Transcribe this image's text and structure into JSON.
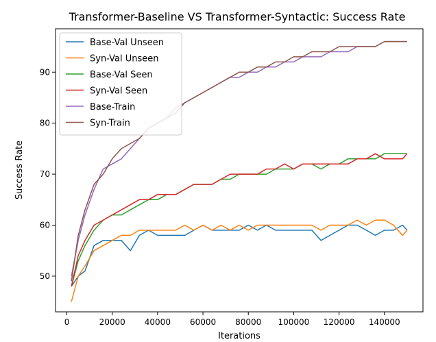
{
  "chart_data": {
    "type": "line",
    "title": "Transformer-Baseline VS Transformer-Syntactic: Success Rate",
    "xlabel": "Iterations",
    "ylabel": "Success Rate",
    "xlim": [
      -5000,
      157000
    ],
    "ylim": [
      43,
      98.5
    ],
    "xticks": [
      0,
      20000,
      40000,
      60000,
      80000,
      100000,
      120000,
      140000
    ],
    "yticks": [
      50,
      60,
      70,
      80,
      90
    ],
    "legend_position": "top-left",
    "grid": false,
    "series": [
      {
        "name": "Base-Val Unseen",
        "color": "#1f77b4",
        "x": [
          2000,
          5000,
          8000,
          12000,
          16000,
          20000,
          24000,
          28000,
          32000,
          36000,
          40000,
          44000,
          48000,
          52000,
          56000,
          60000,
          64000,
          68000,
          72000,
          76000,
          80000,
          84000,
          88000,
          92000,
          96000,
          100000,
          104000,
          108000,
          112000,
          116000,
          120000,
          124000,
          128000,
          132000,
          136000,
          140000,
          144000,
          148000,
          150000
        ],
        "values": [
          48,
          50,
          51,
          56,
          57,
          57,
          57,
          55,
          58,
          59,
          58,
          58,
          58,
          58,
          59,
          60,
          59,
          59,
          59,
          59,
          60,
          59,
          60,
          59,
          59,
          59,
          59,
          59,
          57,
          58,
          59,
          60,
          60,
          59,
          58,
          59,
          59,
          60,
          59
        ]
      },
      {
        "name": "Syn-Val Unseen",
        "color": "#ff7f0e",
        "x": [
          2000,
          5000,
          8000,
          12000,
          16000,
          20000,
          24000,
          28000,
          32000,
          36000,
          40000,
          44000,
          48000,
          52000,
          56000,
          60000,
          64000,
          68000,
          72000,
          76000,
          80000,
          84000,
          88000,
          92000,
          96000,
          100000,
          104000,
          108000,
          112000,
          116000,
          120000,
          124000,
          128000,
          132000,
          136000,
          140000,
          144000,
          148000,
          150000
        ],
        "values": [
          45,
          50,
          52,
          55,
          56,
          57,
          58,
          58,
          59,
          59,
          59,
          59,
          59,
          60,
          59,
          60,
          59,
          60,
          59,
          60,
          59,
          60,
          60,
          60,
          60,
          60,
          60,
          60,
          59,
          60,
          60,
          60,
          61,
          60,
          61,
          61,
          60,
          58,
          59
        ]
      },
      {
        "name": "Base-Val Seen",
        "color": "#2ca02c",
        "x": [
          2000,
          5000,
          8000,
          12000,
          16000,
          20000,
          24000,
          28000,
          32000,
          36000,
          40000,
          44000,
          48000,
          52000,
          56000,
          60000,
          64000,
          68000,
          72000,
          76000,
          80000,
          84000,
          88000,
          92000,
          96000,
          100000,
          104000,
          108000,
          112000,
          116000,
          120000,
          124000,
          128000,
          132000,
          136000,
          140000,
          144000,
          148000,
          150000
        ],
        "values": [
          48,
          53,
          56,
          59,
          61,
          62,
          62,
          63,
          64,
          65,
          65,
          66,
          66,
          67,
          68,
          68,
          68,
          69,
          69,
          70,
          70,
          70,
          70,
          71,
          71,
          71,
          72,
          72,
          71,
          72,
          72,
          73,
          73,
          73,
          73,
          74,
          74,
          74,
          74
        ]
      },
      {
        "name": "Syn-Val Seen",
        "color": "#d62728",
        "x": [
          2000,
          5000,
          8000,
          12000,
          16000,
          20000,
          24000,
          28000,
          32000,
          36000,
          40000,
          44000,
          48000,
          52000,
          56000,
          60000,
          64000,
          68000,
          72000,
          76000,
          80000,
          84000,
          88000,
          92000,
          96000,
          100000,
          104000,
          108000,
          112000,
          116000,
          120000,
          124000,
          128000,
          132000,
          136000,
          140000,
          144000,
          148000,
          150000
        ],
        "values": [
          48,
          54,
          57,
          60,
          61,
          62,
          63,
          64,
          65,
          65,
          66,
          66,
          66,
          67,
          68,
          68,
          68,
          69,
          70,
          70,
          70,
          70,
          71,
          71,
          72,
          71,
          72,
          72,
          72,
          72,
          72,
          72,
          73,
          73,
          74,
          73,
          73,
          73,
          74
        ]
      },
      {
        "name": "Base-Train",
        "color": "#9467bd",
        "x": [
          2000,
          5000,
          8000,
          12000,
          16000,
          20000,
          24000,
          28000,
          32000,
          36000,
          40000,
          44000,
          48000,
          52000,
          56000,
          60000,
          64000,
          68000,
          72000,
          76000,
          80000,
          84000,
          88000,
          92000,
          96000,
          100000,
          104000,
          108000,
          112000,
          116000,
          120000,
          124000,
          128000,
          132000,
          136000,
          140000,
          144000,
          148000,
          150000
        ],
        "values": [
          50,
          57,
          62,
          67,
          71,
          72,
          73,
          75,
          77,
          79,
          80,
          81,
          83,
          84,
          85,
          86,
          87,
          88,
          89,
          89,
          90,
          90,
          91,
          91,
          92,
          92,
          93,
          93,
          93,
          94,
          94,
          94,
          95,
          95,
          95,
          96,
          96,
          96,
          96
        ]
      },
      {
        "name": "Syn-Train",
        "color": "#8c564b",
        "x": [
          2000,
          5000,
          8000,
          12000,
          16000,
          20000,
          24000,
          28000,
          32000,
          36000,
          40000,
          44000,
          48000,
          52000,
          56000,
          60000,
          64000,
          68000,
          72000,
          76000,
          80000,
          84000,
          88000,
          92000,
          96000,
          100000,
          104000,
          108000,
          112000,
          116000,
          120000,
          124000,
          128000,
          132000,
          136000,
          140000,
          144000,
          148000,
          150000
        ],
        "values": [
          49,
          58,
          63,
          68,
          70,
          73,
          75,
          76,
          77,
          79,
          80,
          81,
          82,
          84,
          85,
          86,
          87,
          88,
          89,
          90,
          90,
          91,
          91,
          92,
          92,
          93,
          93,
          94,
          94,
          94,
          95,
          95,
          95,
          95,
          95,
          96,
          96,
          96,
          96
        ]
      }
    ]
  }
}
